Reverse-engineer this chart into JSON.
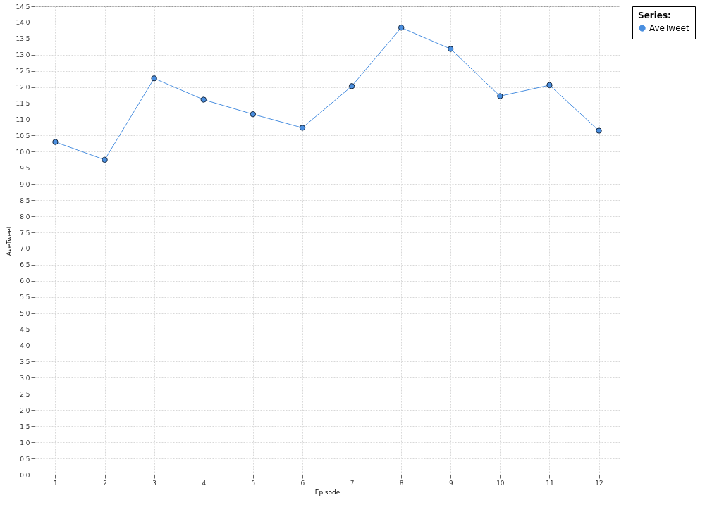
{
  "chart_data": {
    "type": "line",
    "xlabel": "Episode",
    "ylabel": "AveTweet",
    "legend_title": "Series:",
    "categories": [
      "1",
      "2",
      "3",
      "4",
      "5",
      "6",
      "7",
      "8",
      "9",
      "10",
      "11",
      "12"
    ],
    "series": [
      {
        "name": "AveTweet",
        "color": "#4a8fe0",
        "values": [
          10.3,
          9.75,
          12.27,
          11.61,
          11.16,
          10.74,
          12.03,
          13.84,
          13.18,
          11.72,
          12.06,
          10.65
        ]
      }
    ],
    "ylim": [
      0,
      14.5
    ],
    "yticks": [
      {
        "value": 0,
        "label": "0.0"
      },
      0.5,
      {
        "value": 1,
        "label": "1.0"
      },
      1.5,
      {
        "value": 2,
        "label": "2.0"
      },
      2.5,
      {
        "value": 3,
        "label": "3.0"
      },
      3.5,
      {
        "value": 4,
        "label": "4.0"
      },
      4.5,
      {
        "value": 5,
        "label": "5.0"
      },
      5.5,
      {
        "value": 6,
        "label": "6.0"
      },
      6.5,
      {
        "value": 7,
        "label": "7.0"
      },
      7.5,
      {
        "value": 8,
        "label": "8.0"
      },
      8.5,
      {
        "value": 9,
        "label": "9.0"
      },
      9.5,
      {
        "value": 10,
        "label": "10.0"
      },
      10.5,
      {
        "value": 11,
        "label": "11.0"
      },
      11.5,
      {
        "value": 12,
        "label": "12.0"
      },
      12.5,
      {
        "value": 13,
        "label": "13.0"
      },
      13.5,
      {
        "value": 14,
        "label": "14.0"
      },
      14.5
    ],
    "grid": true,
    "legend": "right",
    "marker": "circle",
    "line_style": "solid"
  }
}
